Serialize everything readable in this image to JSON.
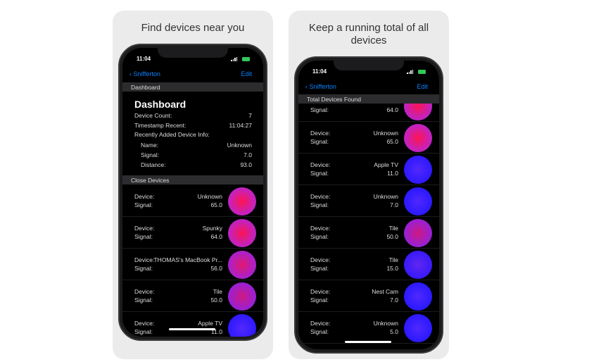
{
  "panels": [
    {
      "caption": "Find devices near you",
      "phone": {
        "time": "11:04",
        "back": "Snifferton",
        "edit": "Edit",
        "section": "Dashboard",
        "heading": "Dashboard",
        "stats": [
          {
            "label": "Device Count:",
            "value": "7"
          },
          {
            "label": "Timestamp Recent:",
            "value": "11:04:27"
          }
        ],
        "info_title": "Recently Added Device Info:",
        "info": [
          {
            "label": "Name:",
            "value": "Unknown"
          },
          {
            "label": "Signal:",
            "value": "7.0"
          },
          {
            "label": "Distance:",
            "value": "93.0"
          }
        ],
        "list_header": "Close Devices",
        "device_label": "Device:",
        "signal_label": "Signal:",
        "devices": [
          {
            "name": "Unknown",
            "signal": "65.0"
          },
          {
            "name": "Spunky",
            "signal": "64.0"
          },
          {
            "name": "THOMAS's MacBook Pr...",
            "signal": "56.0"
          },
          {
            "name": "Tile",
            "signal": "50.0"
          },
          {
            "name": "Apple TV",
            "signal": "11.0"
          }
        ]
      }
    },
    {
      "caption": "Keep a running total of all devices",
      "phone": {
        "time": "11:04",
        "back": "Snifferton",
        "edit": "Edit",
        "section": "Total Devices Found",
        "device_label": "Device:",
        "signal_label": "Signal:",
        "devices": [
          {
            "signal": "64.0"
          },
          {
            "name": "Unknown",
            "signal": "65.0"
          },
          {
            "name": "Apple TV",
            "signal": "11.0"
          },
          {
            "name": "Unknown",
            "signal": "7.0"
          },
          {
            "name": "Tile",
            "signal": "50.0"
          },
          {
            "name": "Tile",
            "signal": "15.0"
          },
          {
            "name": "Nest Cam",
            "signal": "7.0"
          },
          {
            "name": "Unknown",
            "signal": "5.0"
          }
        ]
      }
    }
  ]
}
